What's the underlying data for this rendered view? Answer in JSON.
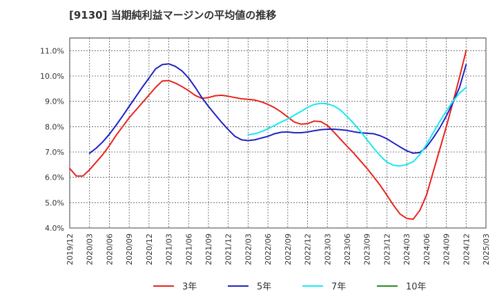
{
  "chart_data": {
    "type": "line",
    "title": "[9130]  当期純利益マージンの平均値の推移",
    "xlabel": "",
    "ylabel": "",
    "ylim": [
      4.0,
      11.5
    ],
    "y_ticks": [
      "4.0%",
      "5.0%",
      "6.0%",
      "7.0%",
      "8.0%",
      "9.0%",
      "10.0%",
      "11.0%"
    ],
    "y_tick_values": [
      4,
      5,
      6,
      7,
      8,
      9,
      10,
      11
    ],
    "x_range": [
      "2019/12",
      "2025/03"
    ],
    "x_ticks": [
      "2019/12",
      "2020/03",
      "2020/06",
      "2020/09",
      "2020/12",
      "2021/03",
      "2021/06",
      "2021/09",
      "2021/12",
      "2022/03",
      "2022/06",
      "2022/09",
      "2022/12",
      "2023/03",
      "2023/06",
      "2023/09",
      "2023/12",
      "2024/03",
      "2024/06",
      "2024/09",
      "2024/12",
      "2025/03"
    ],
    "grid": true,
    "legend_position": "bottom",
    "series": [
      {
        "name": "3年",
        "color": "#e8231d",
        "x": [
          "2019/12",
          "2020/01",
          "2020/02",
          "2020/03",
          "2020/04",
          "2020/05",
          "2020/06",
          "2020/07",
          "2020/08",
          "2020/09",
          "2020/10",
          "2020/11",
          "2020/12",
          "2021/01",
          "2021/02",
          "2021/03",
          "2021/04",
          "2021/05",
          "2021/06",
          "2021/07",
          "2021/08",
          "2021/09",
          "2021/10",
          "2021/11",
          "2021/12",
          "2022/01",
          "2022/02",
          "2022/03",
          "2022/04",
          "2022/05",
          "2022/06",
          "2022/07",
          "2022/08",
          "2022/09",
          "2022/10",
          "2022/11",
          "2022/12",
          "2023/01",
          "2023/02",
          "2023/03",
          "2023/04",
          "2023/05",
          "2023/06",
          "2023/07",
          "2023/08",
          "2023/09",
          "2023/10",
          "2023/11",
          "2023/12",
          "2024/01",
          "2024/02",
          "2024/03",
          "2024/04",
          "2024/05",
          "2024/06",
          "2024/07",
          "2024/08",
          "2024/09",
          "2024/10",
          "2024/11",
          "2024/12"
        ],
        "values": [
          6.35,
          6.05,
          6.05,
          6.3,
          6.6,
          6.9,
          7.25,
          7.65,
          8.0,
          8.35,
          8.65,
          8.95,
          9.25,
          9.55,
          9.8,
          9.82,
          9.72,
          9.58,
          9.42,
          9.23,
          9.12,
          9.15,
          9.22,
          9.24,
          9.2,
          9.15,
          9.1,
          9.08,
          9.05,
          8.98,
          8.88,
          8.75,
          8.58,
          8.38,
          8.18,
          8.1,
          8.12,
          8.22,
          8.2,
          8.05,
          7.78,
          7.5,
          7.22,
          6.95,
          6.65,
          6.35,
          6.02,
          5.68,
          5.3,
          4.9,
          4.55,
          4.38,
          4.35,
          4.7,
          5.3,
          6.2,
          7.1,
          8.0,
          8.95,
          9.95,
          11.0
        ]
      },
      {
        "name": "5年",
        "color": "#1f22c2",
        "x": [
          "2020/03",
          "2020/04",
          "2020/05",
          "2020/06",
          "2020/07",
          "2020/08",
          "2020/09",
          "2020/10",
          "2020/11",
          "2020/12",
          "2021/01",
          "2021/02",
          "2021/03",
          "2021/04",
          "2021/05",
          "2021/06",
          "2021/07",
          "2021/08",
          "2021/09",
          "2021/10",
          "2021/11",
          "2021/12",
          "2022/01",
          "2022/02",
          "2022/03",
          "2022/04",
          "2022/05",
          "2022/06",
          "2022/07",
          "2022/08",
          "2022/09",
          "2022/10",
          "2022/11",
          "2022/12",
          "2023/01",
          "2023/02",
          "2023/03",
          "2023/04",
          "2023/05",
          "2023/06",
          "2023/07",
          "2023/08",
          "2023/09",
          "2023/10",
          "2023/11",
          "2023/12",
          "2024/01",
          "2024/02",
          "2024/03",
          "2024/04",
          "2024/05",
          "2024/06",
          "2024/07",
          "2024/08",
          "2024/09",
          "2024/10",
          "2024/11",
          "2024/12"
        ],
        "values": [
          6.95,
          7.15,
          7.4,
          7.7,
          8.05,
          8.42,
          8.8,
          9.18,
          9.56,
          9.92,
          10.28,
          10.45,
          10.48,
          10.38,
          10.2,
          9.92,
          9.55,
          9.15,
          8.8,
          8.48,
          8.17,
          7.88,
          7.62,
          7.48,
          7.45,
          7.48,
          7.55,
          7.62,
          7.72,
          7.78,
          7.79,
          7.76,
          7.76,
          7.79,
          7.84,
          7.88,
          7.9,
          7.9,
          7.88,
          7.85,
          7.8,
          7.76,
          7.74,
          7.72,
          7.64,
          7.52,
          7.36,
          7.2,
          7.05,
          6.95,
          6.98,
          7.2,
          7.55,
          7.95,
          8.42,
          8.95,
          9.55,
          10.45
        ]
      },
      {
        "name": "7年",
        "color": "#18e8f0",
        "x": [
          "2022/03",
          "2022/04",
          "2022/05",
          "2022/06",
          "2022/07",
          "2022/08",
          "2022/09",
          "2022/10",
          "2022/11",
          "2022/12",
          "2023/01",
          "2023/02",
          "2023/03",
          "2023/04",
          "2023/05",
          "2023/06",
          "2023/07",
          "2023/08",
          "2023/09",
          "2023/10",
          "2023/11",
          "2023/12",
          "2024/01",
          "2024/02",
          "2024/03",
          "2024/04",
          "2024/05",
          "2024/06",
          "2024/07",
          "2024/08",
          "2024/09",
          "2024/10",
          "2024/11",
          "2024/12"
        ],
        "values": [
          7.68,
          7.72,
          7.8,
          7.92,
          8.05,
          8.18,
          8.3,
          8.45,
          8.6,
          8.76,
          8.88,
          8.92,
          8.9,
          8.82,
          8.65,
          8.4,
          8.12,
          7.82,
          7.48,
          7.15,
          6.85,
          6.6,
          6.48,
          6.45,
          6.5,
          6.62,
          6.9,
          7.3,
          7.75,
          8.2,
          8.62,
          9.0,
          9.32,
          9.55
        ]
      },
      {
        "name": "10年",
        "color": "#2a8a22",
        "x": [],
        "values": []
      }
    ]
  }
}
